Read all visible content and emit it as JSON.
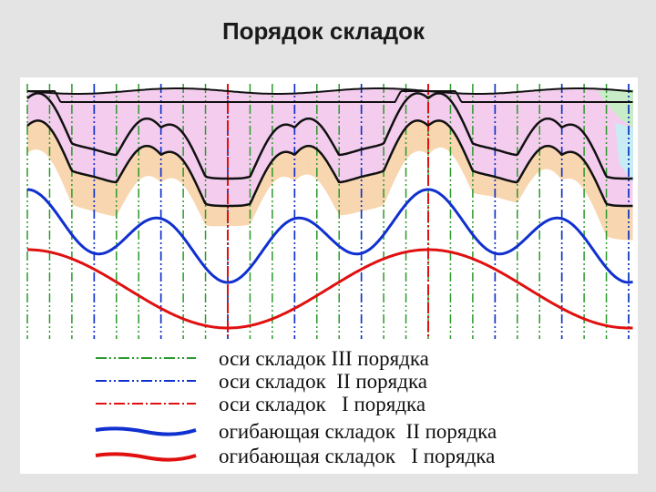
{
  "title": "Порядок складок",
  "legend": [
    {
      "label": "оси складок III порядка"
    },
    {
      "label": "оси складок  II порядка"
    },
    {
      "label": "оси складок   I порядка"
    },
    {
      "label": "огибающая складок  II порядка"
    },
    {
      "label": "огибающая складок   I порядка"
    }
  ]
}
